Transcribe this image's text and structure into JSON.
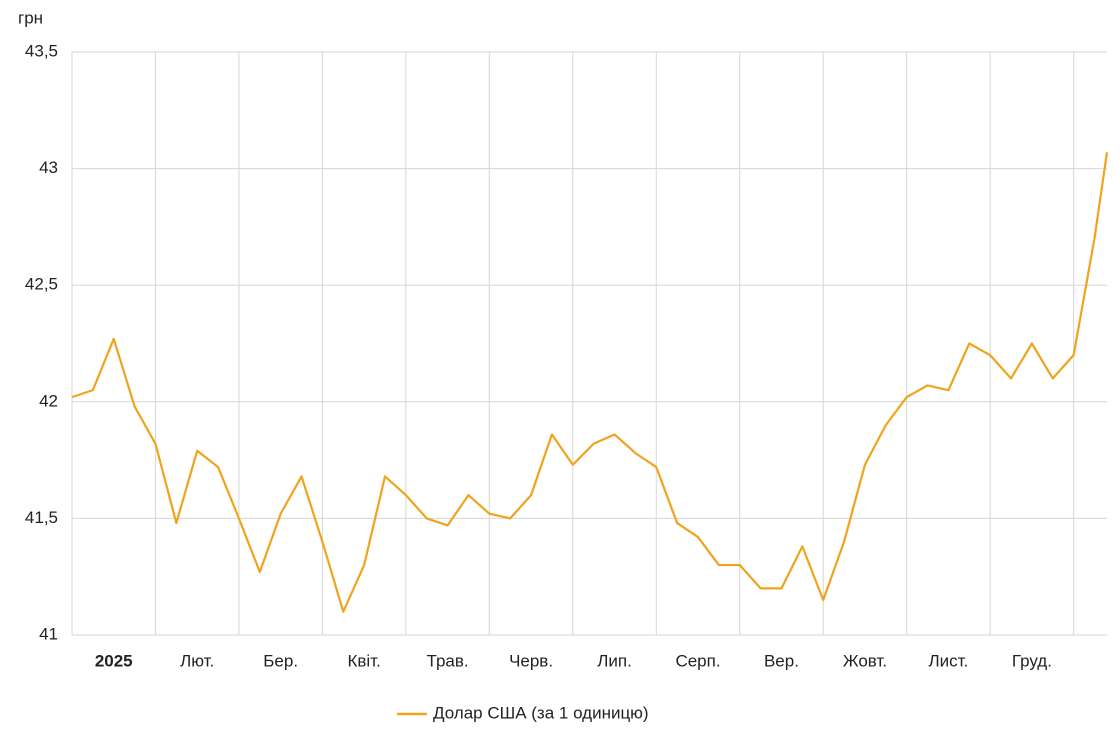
{
  "chart_data": {
    "type": "line",
    "y_unit": "грн",
    "xlim": [
      0,
      12.4
    ],
    "xticks": [
      {
        "value": 0,
        "label": "2025"
      },
      {
        "value": 1,
        "label": "Лют."
      },
      {
        "value": 2,
        "label": "Бер."
      },
      {
        "value": 3,
        "label": "Квіт."
      },
      {
        "value": 4,
        "label": "Трав."
      },
      {
        "value": 5,
        "label": "Черв."
      },
      {
        "value": 6,
        "label": "Лип."
      },
      {
        "value": 7,
        "label": "Серп."
      },
      {
        "value": 8,
        "label": "Вер."
      },
      {
        "value": 9,
        "label": "Жовт."
      },
      {
        "value": 10,
        "label": "Лист."
      },
      {
        "value": 11,
        "label": "Груд."
      },
      12
    ],
    "ylim": [
      41,
      43.5
    ],
    "yticks": [
      41,
      {
        "value": 41.5,
        "label": "41,5"
      },
      42,
      {
        "value": 42.5,
        "label": "42,5"
      },
      43,
      {
        "value": 43.5,
        "label": "43,5"
      }
    ],
    "grid": true,
    "legend": "bottom",
    "x": [
      0,
      0.25,
      0.5,
      0.75,
      1,
      1.25,
      1.5,
      1.75,
      2,
      2.25,
      2.5,
      2.75,
      3,
      3.25,
      3.5,
      3.75,
      4,
      4.25,
      4.5,
      4.75,
      5,
      5.25,
      5.5,
      5.75,
      6,
      6.25,
      6.5,
      6.75,
      7,
      7.25,
      7.5,
      7.75,
      8,
      8.25,
      8.5,
      8.75,
      9,
      9.25,
      9.5,
      9.75,
      10,
      10.25,
      10.5,
      10.75,
      11,
      11.25,
      11.5,
      11.75,
      12,
      12.25,
      12.4
    ],
    "series": [
      {
        "name": "Долар США (за 1 одиницю)",
        "color": "#f0a31c",
        "values": [
          42.02,
          42.05,
          42.27,
          41.98,
          41.82,
          41.48,
          41.79,
          41.72,
          41.5,
          41.27,
          41.52,
          41.68,
          41.4,
          41.1,
          41.3,
          41.68,
          41.6,
          41.5,
          41.47,
          41.6,
          41.52,
          41.5,
          41.6,
          41.86,
          41.73,
          41.82,
          41.86,
          41.78,
          41.72,
          41.48,
          41.42,
          41.3,
          41.3,
          41.2,
          41.2,
          41.38,
          41.15,
          41.4,
          41.73,
          41.9,
          42.02,
          42.07,
          42.05,
          42.25,
          42.2,
          42.1,
          42.25,
          42.1,
          42.2,
          42.7,
          43.07
        ]
      }
    ]
  }
}
